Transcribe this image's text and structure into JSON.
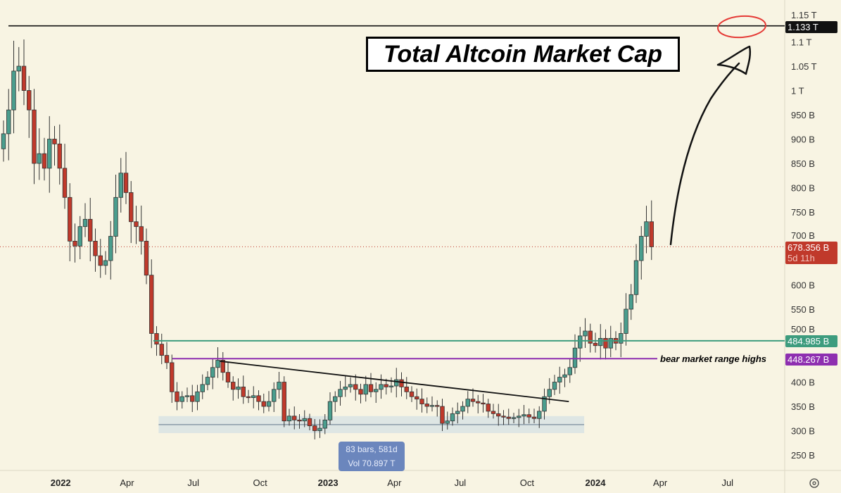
{
  "title": "Total Altcoin Market Cap",
  "price_tags": {
    "top_line": "1.133 T",
    "current": "678.356 B",
    "countdown": "5d 11h",
    "green_line": "484.985 B",
    "purple_line": "448.267 B"
  },
  "annotations": {
    "bear_label": "bear market range highs",
    "range_bars": "83 bars, 581d",
    "range_vol": "Vol 70.897 T"
  },
  "colors": {
    "up": "#4a9e8e",
    "down": "#c0392b",
    "green_line": "#3d9c7e",
    "purple_line": "#8e2fb0",
    "current": "#c0392b"
  },
  "chart_data": {
    "type": "candlestick",
    "title": "Total Altcoin Market Cap",
    "interval": "weekly",
    "y_unit": "B",
    "ylim": [
      210,
      1180
    ],
    "y_ticks": [
      {
        "v": 1150,
        "label": "1.15 T"
      },
      {
        "v": 1100,
        "label": "1.1 T"
      },
      {
        "v": 1050,
        "label": "1.05 T"
      },
      {
        "v": 1000,
        "label": "1 T"
      },
      {
        "v": 950,
        "label": "950 B"
      },
      {
        "v": 900,
        "label": "900 B"
      },
      {
        "v": 850,
        "label": "850 B"
      },
      {
        "v": 800,
        "label": "800 B"
      },
      {
        "v": 750,
        "label": "750 B"
      },
      {
        "v": 700,
        "label": "700 B"
      },
      {
        "v": 600,
        "label": "600 B"
      },
      {
        "v": 550,
        "label": "550 B"
      },
      {
        "v": 500,
        "label": "500 B"
      },
      {
        "v": 400,
        "label": "400 B"
      },
      {
        "v": 350,
        "label": "350 B"
      },
      {
        "v": 300,
        "label": "300 B"
      },
      {
        "v": 250,
        "label": "250 B"
      }
    ],
    "x_ticks": [
      {
        "week": 11.2,
        "label": "2022",
        "bold": true
      },
      {
        "week": 24.2,
        "label": "Apr"
      },
      {
        "week": 37.2,
        "label": "Jul"
      },
      {
        "week": 50.3,
        "label": "Oct"
      },
      {
        "week": 63.6,
        "label": "2023",
        "bold": true
      },
      {
        "week": 76.6,
        "label": "Apr"
      },
      {
        "week": 89.5,
        "label": "Jul"
      },
      {
        "week": 102.6,
        "label": "Oct"
      },
      {
        "week": 116,
        "label": "2024",
        "bold": true
      },
      {
        "week": 128.7,
        "label": "Apr"
      },
      {
        "week": 141.9,
        "label": "Jul"
      }
    ],
    "first_open": 880,
    "closes": [
      911,
      960,
      1040,
      1050,
      1000,
      960,
      850,
      870,
      840,
      900,
      890,
      840,
      780,
      690,
      680,
      720,
      735,
      690,
      660,
      640,
      650,
      700,
      780,
      830,
      790,
      730,
      720,
      690,
      620,
      500,
      478,
      455,
      440,
      380,
      360,
      370,
      372,
      360,
      380,
      395,
      410,
      430,
      445,
      420,
      400,
      385,
      390,
      370,
      368,
      372,
      360,
      350,
      360,
      385,
      400,
      320,
      330,
      322,
      320,
      325,
      310,
      300,
      305,
      322,
      360,
      370,
      385,
      390,
      395,
      385,
      375,
      395,
      380,
      385,
      395,
      390,
      392,
      405,
      390,
      380,
      370,
      365,
      355,
      350,
      352,
      350,
      315,
      320,
      335,
      340,
      350,
      365,
      360,
      357,
      355,
      340,
      335,
      330,
      328,
      325,
      327,
      330,
      333,
      328,
      325,
      340,
      370,
      385,
      400,
      410,
      415,
      430,
      470,
      495,
      505,
      480,
      475,
      490,
      470,
      490,
      480,
      500,
      550,
      580,
      650,
      700,
      730,
      678.356
    ],
    "levels": {
      "top": 1133,
      "green": 484.985,
      "purple": 448.267,
      "current": 678.356
    },
    "trendline": [
      {
        "week": 42.4,
        "v": 443
      },
      {
        "week": 110.8,
        "v": 360
      }
    ],
    "range": {
      "from_week": 30.4,
      "to_week": 113.8,
      "low": 295,
      "high": 330
    }
  }
}
